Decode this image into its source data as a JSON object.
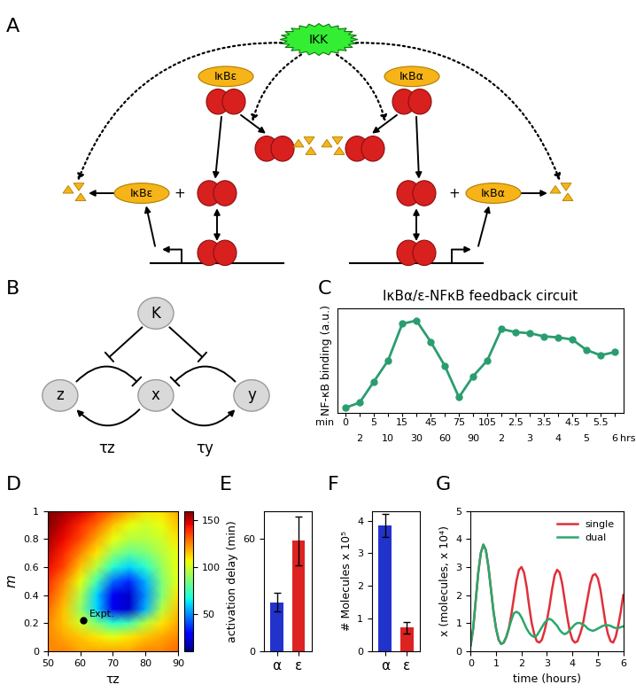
{
  "panel_letters": [
    "A",
    "B",
    "C",
    "D",
    "E",
    "F",
    "G"
  ],
  "diagram_A": {
    "labels": {
      "ikk": "IKK",
      "ikb_e": "IκBε",
      "ikb_a": "IκBα",
      "plus": "+"
    }
  },
  "diagram_B": {
    "nodes": {
      "K": "K",
      "z": "z",
      "x": "x",
      "y": "y"
    },
    "delays": {
      "z": "τz",
      "y": "τy"
    }
  },
  "chart_data": [
    {
      "type": "line",
      "title": "IκBα/ε-NFκB feedback circuit",
      "y_label": "NF-κB binding (a.u.)",
      "x_unit_labels": [
        "min",
        "hrs"
      ],
      "categories": [
        "0",
        "2",
        "5",
        "10",
        "15",
        "30",
        "45",
        "60",
        "75",
        "90",
        "105",
        "2",
        "2.5",
        "3",
        "3.5",
        "4",
        "4.5",
        "5",
        "5.5",
        "6"
      ],
      "values": [
        0.05,
        0.1,
        0.3,
        0.5,
        0.85,
        0.88,
        0.68,
        0.45,
        0.15,
        0.35,
        0.5,
        0.8,
        0.77,
        0.76,
        0.73,
        0.72,
        0.7,
        0.6,
        0.55,
        0.58
      ],
      "color": "#2a9d6f",
      "marker": "o",
      "ylim": [
        0,
        1
      ],
      "yticks": [],
      "tick_labels": "x"
    },
    {
      "type": "heatmap",
      "x_label": "τz",
      "y_label": "m",
      "x": [
        50,
        55,
        60,
        65,
        70,
        75,
        80,
        85,
        90
      ],
      "y": [
        0,
        0.1,
        0.2,
        0.3,
        0.4,
        0.5,
        0.6,
        0.7,
        0.8,
        0.9,
        1
      ],
      "cells": [
        [
          125,
          125,
          120,
          120,
          120,
          120,
          125,
          125,
          130
        ],
        [
          125,
          120,
          115,
          110,
          105,
          110,
          115,
          120,
          125
        ],
        [
          125,
          115,
          100,
          85,
          70,
          75,
          95,
          110,
          120
        ],
        [
          130,
          115,
          90,
          60,
          25,
          20,
          55,
          95,
          115
        ],
        [
          135,
          120,
          95,
          60,
          25,
          20,
          50,
          85,
          110
        ],
        [
          140,
          125,
          105,
          75,
          45,
          35,
          55,
          85,
          105
        ],
        [
          145,
          135,
          115,
          95,
          70,
          60,
          70,
          90,
          105
        ],
        [
          150,
          140,
          125,
          110,
          90,
          80,
          85,
          95,
          105
        ],
        [
          155,
          145,
          135,
          120,
          105,
          95,
          95,
          100,
          110
        ],
        [
          160,
          150,
          140,
          130,
          115,
          105,
          100,
          105,
          115
        ],
        [
          160,
          155,
          150,
          140,
          130,
          120,
          110,
          110,
          120
        ]
      ],
      "colorbar": {
        "range": [
          10,
          160
        ],
        "ticks": [
          50,
          100,
          150
        ]
      },
      "points": [
        {
          "x": 61,
          "y": 0.22,
          "label": "Expt."
        }
      ],
      "xlim": [
        50,
        90
      ],
      "xticks": [
        50,
        60,
        70,
        80,
        90
      ],
      "ylim": [
        0,
        1
      ],
      "yticks": [
        0,
        0.2,
        0.4,
        0.6,
        0.8,
        1
      ]
    },
    {
      "type": "bar",
      "y_label": "activation delay (min)",
      "categories": [
        "α",
        "ε"
      ],
      "values": [
        26,
        59
      ],
      "errors": [
        5,
        13
      ],
      "colors": [
        "#2233cc",
        "#dd2222"
      ],
      "ylim": [
        0,
        75
      ],
      "yticks": [
        0,
        60
      ]
    },
    {
      "type": "bar",
      "y_label": "# Molecules x 10⁵",
      "categories": [
        "α",
        "ε"
      ],
      "values": [
        3.85,
        0.72
      ],
      "errors": [
        0.35,
        0.18
      ],
      "colors": [
        "#2233cc",
        "#dd2222"
      ],
      "ylim": [
        0,
        4.3
      ],
      "yticks": [
        0,
        1,
        2,
        3,
        4
      ]
    },
    {
      "type": "line",
      "x_label": "time (hours)",
      "y_label": "x (molecules, x 10⁴)",
      "legend": "upper right",
      "x": [
        0,
        0.1,
        0.2,
        0.3,
        0.4,
        0.5,
        0.6,
        0.7,
        0.8,
        0.9,
        1,
        1.1,
        1.2,
        1.3,
        1.4,
        1.5,
        1.6,
        1.7,
        1.8,
        1.9,
        2,
        2.1,
        2.2,
        2.3,
        2.4,
        2.5,
        2.6,
        2.7,
        2.8,
        2.9,
        3,
        3.1,
        3.2,
        3.3,
        3.4,
        3.5,
        3.6,
        3.7,
        3.8,
        3.9,
        4,
        4.1,
        4.2,
        4.3,
        4.4,
        4.5,
        4.6,
        4.7,
        4.8,
        4.9,
        5,
        5.1,
        5.2,
        5.3,
        5.4,
        5.5,
        5.6,
        5.7,
        5.8,
        5.9,
        6
      ],
      "series": [
        {
          "name": "single",
          "color": "#e0303a",
          "values": [
            0.2,
            0.8,
            1.8,
            2.8,
            3.5,
            3.8,
            3.6,
            3.0,
            2.2,
            1.4,
            0.8,
            0.4,
            0.25,
            0.3,
            0.5,
            0.8,
            1.3,
            1.9,
            2.5,
            2.9,
            3.0,
            2.8,
            2.3,
            1.6,
            1.0,
            0.6,
            0.35,
            0.3,
            0.4,
            0.7,
            1.1,
            1.6,
            2.2,
            2.7,
            2.9,
            2.8,
            2.4,
            1.8,
            1.2,
            0.7,
            0.4,
            0.3,
            0.35,
            0.6,
            0.9,
            1.4,
            1.9,
            2.4,
            2.7,
            2.75,
            2.6,
            2.2,
            1.6,
            1.0,
            0.6,
            0.35,
            0.3,
            0.5,
            0.9,
            1.4,
            2.0
          ]
        },
        {
          "name": "dual",
          "color": "#2aa86a",
          "values": [
            0.2,
            0.8,
            1.8,
            2.8,
            3.5,
            3.8,
            3.6,
            3.0,
            2.2,
            1.4,
            0.8,
            0.4,
            0.25,
            0.3,
            0.5,
            0.8,
            1.1,
            1.35,
            1.4,
            1.35,
            1.2,
            1.0,
            0.8,
            0.65,
            0.55,
            0.5,
            0.55,
            0.7,
            0.85,
            1.0,
            1.1,
            1.15,
            1.1,
            1.0,
            0.9,
            0.75,
            0.65,
            0.6,
            0.65,
            0.75,
            0.85,
            0.95,
            1.0,
            1.0,
            0.95,
            0.9,
            0.8,
            0.75,
            0.72,
            0.75,
            0.8,
            0.85,
            0.9,
            0.92,
            0.92,
            0.9,
            0.85,
            0.82,
            0.82,
            0.85,
            0.88
          ]
        }
      ],
      "xlim": [
        0,
        6
      ],
      "xticks": [
        0,
        1,
        2,
        3,
        4,
        5,
        6
      ],
      "ylim": [
        0,
        5
      ],
      "yticks": [
        0,
        1,
        2,
        3,
        4,
        5
      ]
    }
  ]
}
